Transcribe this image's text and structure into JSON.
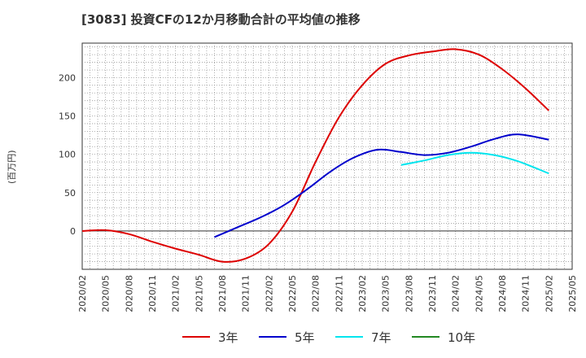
{
  "title": "[3083]  投資CFの12か月移動合計の平均値の推移",
  "chart_data": {
    "type": "line",
    "ylabel": "(百万円)",
    "xlabel": "",
    "ylim": [
      -50,
      245
    ],
    "yticks": [
      0,
      50,
      100,
      150,
      200
    ],
    "x_ticks": [
      "2020/02",
      "2020/05",
      "2020/08",
      "2020/11",
      "2021/02",
      "2021/05",
      "2021/08",
      "2021/11",
      "2022/02",
      "2022/05",
      "2022/08",
      "2022/11",
      "2023/02",
      "2023/05",
      "2023/08",
      "2023/11",
      "2024/02",
      "2024/05",
      "2024/08",
      "2024/11",
      "2025/02",
      "2025/05"
    ],
    "grid": true,
    "legend_position": "bottom",
    "series": [
      {
        "name": "3年",
        "color": "#dd0000",
        "points": [
          [
            "2020/02",
            0
          ],
          [
            "2020/05",
            1
          ],
          [
            "2020/08",
            -4
          ],
          [
            "2020/11",
            -14
          ],
          [
            "2021/02",
            -23
          ],
          [
            "2021/05",
            -31
          ],
          [
            "2021/08",
            -40
          ],
          [
            "2021/11",
            -36
          ],
          [
            "2022/02",
            -17
          ],
          [
            "2022/05",
            25
          ],
          [
            "2022/08",
            90
          ],
          [
            "2022/11",
            148
          ],
          [
            "2023/02",
            190
          ],
          [
            "2023/05",
            218
          ],
          [
            "2023/08",
            229
          ],
          [
            "2023/11",
            234
          ],
          [
            "2024/02",
            237
          ],
          [
            "2024/05",
            230
          ],
          [
            "2024/08",
            211
          ],
          [
            "2024/11",
            186
          ],
          [
            "2025/02",
            157
          ]
        ]
      },
      {
        "name": "5年",
        "color": "#0000cc",
        "points": [
          [
            "2021/07",
            -8
          ],
          [
            "2021/10",
            5
          ],
          [
            "2022/01",
            18
          ],
          [
            "2022/04",
            34
          ],
          [
            "2022/07",
            55
          ],
          [
            "2022/10",
            78
          ],
          [
            "2023/01",
            96
          ],
          [
            "2023/04",
            106
          ],
          [
            "2023/07",
            103
          ],
          [
            "2023/10",
            99
          ],
          [
            "2024/01",
            102
          ],
          [
            "2024/04",
            110
          ],
          [
            "2024/07",
            120
          ],
          [
            "2024/10",
            126
          ],
          [
            "2025/02",
            119
          ]
        ]
      },
      {
        "name": "7年",
        "color": "#00e5ee",
        "points": [
          [
            "2023/07",
            86
          ],
          [
            "2023/10",
            92
          ],
          [
            "2024/01",
            99
          ],
          [
            "2024/04",
            102
          ],
          [
            "2024/07",
            99
          ],
          [
            "2024/10",
            91
          ],
          [
            "2025/02",
            75
          ]
        ]
      },
      {
        "name": "10年",
        "color": "#228822",
        "points": []
      }
    ]
  }
}
